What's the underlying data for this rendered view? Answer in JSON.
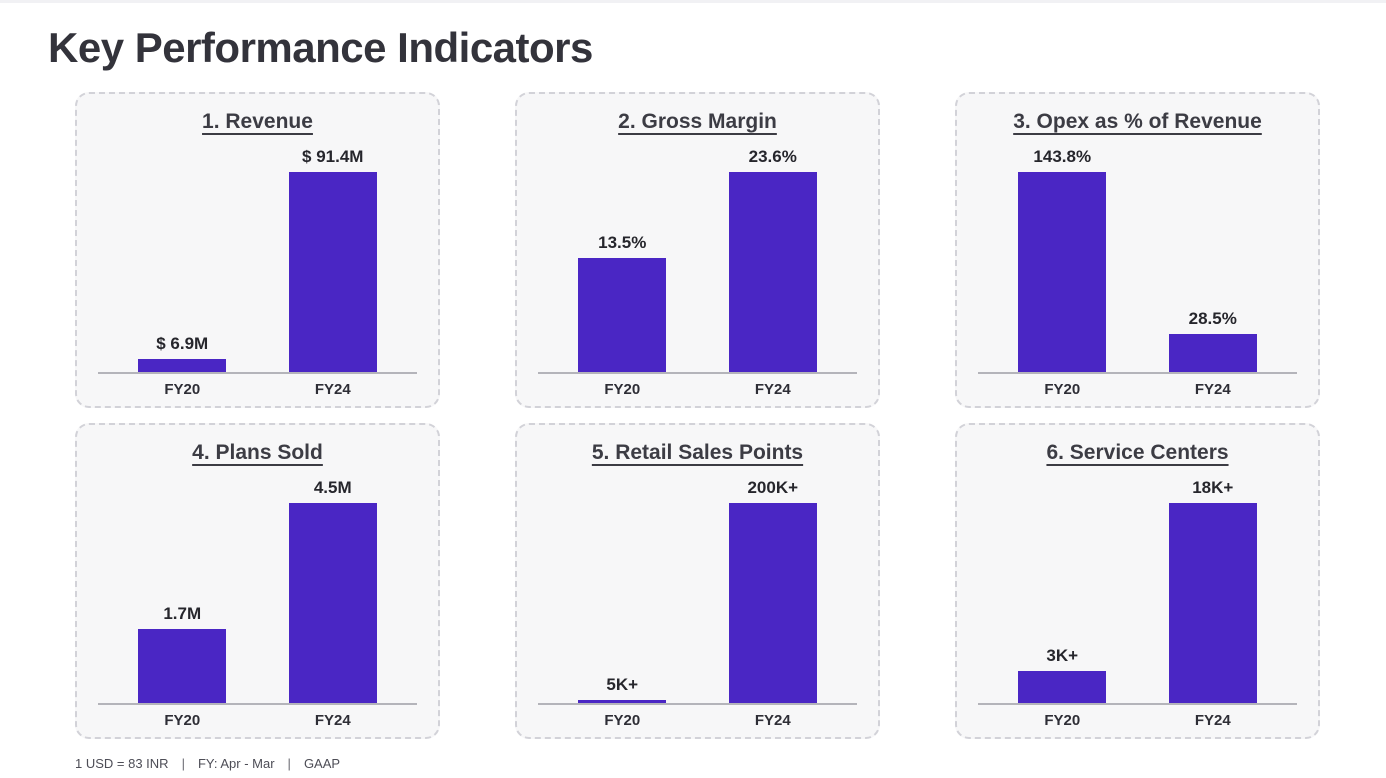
{
  "page": {
    "title": "Key Performance Indicators"
  },
  "colors": {
    "bar": "#4A26C4",
    "card_background": "#f7f7f8",
    "card_border": "#d2d2d8",
    "title_text": "#33333b",
    "axis_line": "#b4b4ba"
  },
  "chart_data": [
    {
      "type": "bar",
      "title": "1. Revenue",
      "categories": [
        "FY20",
        "FY24"
      ],
      "values": [
        6.9,
        91.4
      ],
      "value_labels": [
        "$ 6.9M",
        "$ 91.4M"
      ],
      "unit": "USD millions",
      "grid": false,
      "legend": false
    },
    {
      "type": "bar",
      "title": "2. Gross Margin",
      "categories": [
        "FY20",
        "FY24"
      ],
      "values": [
        13.5,
        23.6
      ],
      "value_labels": [
        "13.5%",
        "23.6%"
      ],
      "unit": "percent",
      "grid": false,
      "legend": false
    },
    {
      "type": "bar",
      "title": "3. Opex as % of Revenue",
      "categories": [
        "FY20",
        "FY24"
      ],
      "values": [
        143.8,
        28.5
      ],
      "value_labels": [
        "143.8%",
        "28.5%"
      ],
      "unit": "percent",
      "grid": false,
      "legend": false
    },
    {
      "type": "bar",
      "title": "4. Plans Sold",
      "categories": [
        "FY20",
        "FY24"
      ],
      "values": [
        1.7,
        4.5
      ],
      "value_labels": [
        "1.7M",
        "4.5M"
      ],
      "unit": "millions",
      "grid": false,
      "legend": false
    },
    {
      "type": "bar",
      "title": "5. Retail Sales Points",
      "categories": [
        "FY20",
        "FY24"
      ],
      "values": [
        5,
        200
      ],
      "value_labels": [
        "5K+",
        "200K+"
      ],
      "unit": "thousands",
      "grid": false,
      "legend": false
    },
    {
      "type": "bar",
      "title": "6. Service Centers",
      "categories": [
        "FY20",
        "FY24"
      ],
      "values": [
        3,
        18
      ],
      "value_labels": [
        "3K+",
        "18K+"
      ],
      "unit": "thousands",
      "grid": false,
      "legend": false
    }
  ],
  "footer": {
    "parts": [
      "1 USD = 83 INR",
      "FY: Apr - Mar",
      "GAAP"
    ],
    "separator": "|"
  }
}
